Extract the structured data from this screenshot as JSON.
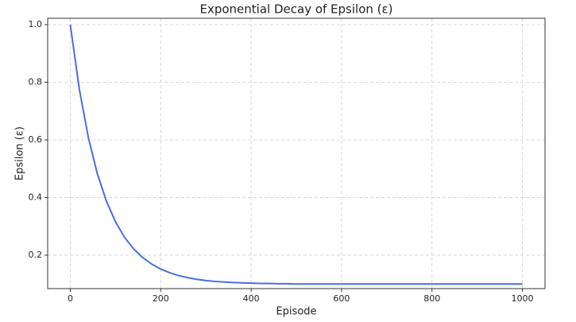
{
  "chart_data": {
    "type": "line",
    "title": "Exponential Decay of Epsilon (ε)",
    "xlabel": "Episode",
    "ylabel": "Epsilon (ε)",
    "x": [
      0,
      20,
      40,
      60,
      80,
      100,
      120,
      140,
      160,
      180,
      200,
      220,
      240,
      260,
      280,
      300,
      320,
      340,
      360,
      380,
      400,
      420,
      440,
      460,
      480,
      500,
      520,
      540,
      560,
      580,
      600,
      620,
      640,
      660,
      680,
      700,
      720,
      740,
      760,
      780,
      800,
      820,
      840,
      860,
      880,
      900,
      920,
      940,
      960,
      980,
      1000
    ],
    "series": [
      {
        "name": "Epsilon",
        "color": "#4a6ee0",
        "values": [
          1.0,
          0.776,
          0.608,
          0.482,
          0.387,
          0.316,
          0.262,
          0.222,
          0.192,
          0.169,
          0.152,
          0.139,
          0.129,
          0.122,
          0.116,
          0.112,
          0.109,
          0.107,
          0.105,
          0.104,
          0.103,
          0.102,
          0.102,
          0.101,
          0.101,
          0.1,
          0.1,
          0.1,
          0.1,
          0.1,
          0.1,
          0.1,
          0.1,
          0.1,
          0.1,
          0.1,
          0.1,
          0.1,
          0.1,
          0.1,
          0.1,
          0.1,
          0.1,
          0.1,
          0.1,
          0.1,
          0.1,
          0.1,
          0.1,
          0.1,
          0.1
        ]
      }
    ],
    "xlim": [
      -50,
      1050
    ],
    "xticks": [
      0,
      200,
      400,
      600,
      800,
      1000
    ],
    "ylim": [
      0.084,
      1.022
    ],
    "yticks": [
      0.2,
      0.4,
      0.6,
      0.8,
      {
        "value": 1.0,
        "label": "1.0"
      }
    ],
    "grid": true
  }
}
